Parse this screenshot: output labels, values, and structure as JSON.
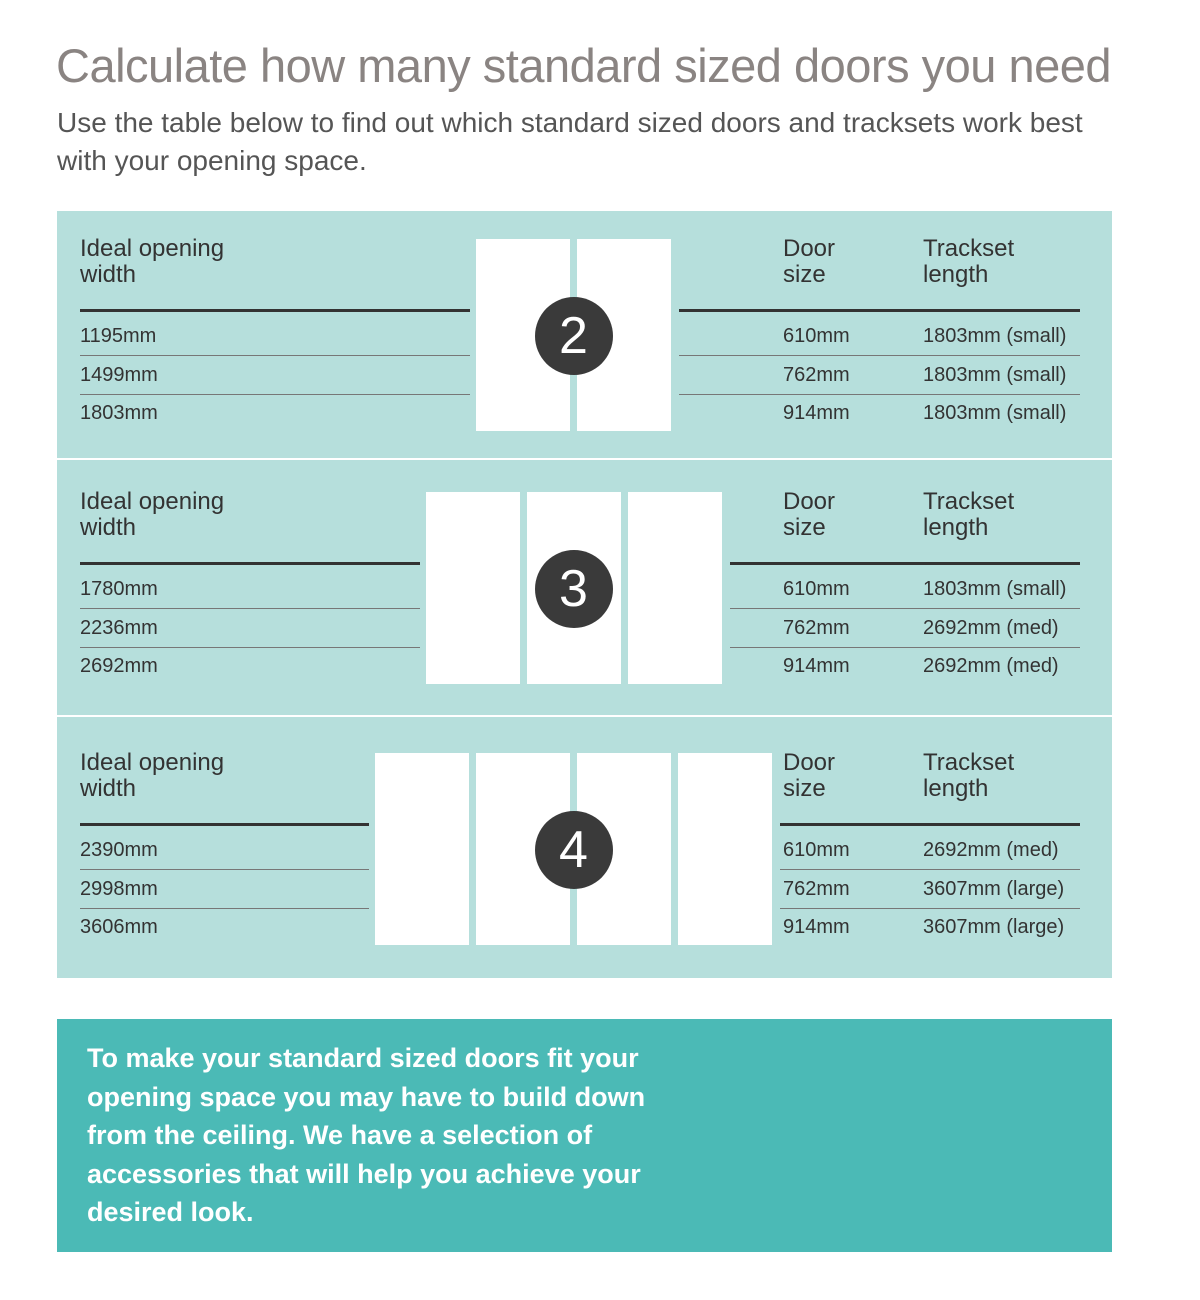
{
  "header": {
    "title": "Calculate how many standard sized doors you need",
    "subtitle": "Use the table below to find out which standard sized doors and tracksets work best with your opening space."
  },
  "sections": [
    {
      "doors": "2",
      "headers": [
        "Ideal opening width",
        "Door size",
        "Trackset length"
      ],
      "rows": [
        [
          "1195mm",
          "610mm",
          "1803mm (small)"
        ],
        [
          "1499mm",
          "762mm",
          "1803mm (small)"
        ],
        [
          "1803mm",
          "914mm",
          "1803mm (small)"
        ]
      ]
    },
    {
      "doors": "3",
      "headers": [
        "Ideal opening width",
        "Door size",
        "Trackset length"
      ],
      "rows": [
        [
          "1780mm",
          "610mm",
          "1803mm (small)"
        ],
        [
          "2236mm",
          "762mm",
          "2692mm (med)"
        ],
        [
          "2692mm",
          "914mm",
          "2692mm (med)"
        ]
      ]
    },
    {
      "doors": "4",
      "headers": [
        "Ideal opening width",
        "Door size",
        "Trackset length"
      ],
      "rows": [
        [
          "2390mm",
          "610mm",
          "2692mm (med)"
        ],
        [
          "2998mm",
          "762mm",
          "3607mm (large)"
        ],
        [
          "3606mm",
          "914mm",
          "3607mm (large)"
        ]
      ]
    }
  ],
  "note": "To make your standard sized doors fit your opening space you may have to build down from the ceiling. We have a selection of accessories that will help you achieve your desired look."
}
